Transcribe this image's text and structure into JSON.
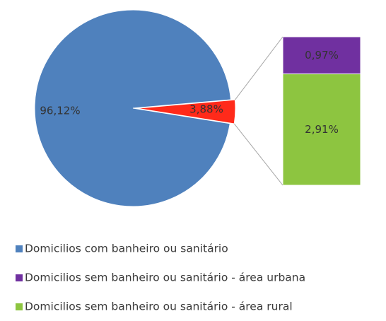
{
  "chart_data": {
    "type": "pie-of-bar",
    "categories": [
      "Domicilios com banheiro ou sanitário",
      null
    ],
    "values": [
      96.12,
      3.88
    ],
    "value_labels": [
      "96,12%",
      "3,88%"
    ],
    "colors": [
      "#4f81bd",
      "#ff2a1a"
    ],
    "bar_series": [
      {
        "name": "Domicilios sem banheiro ou sanitário - área urbana",
        "color": "#7030a0",
        "values": [
          0.97
        ],
        "value_labels": [
          "0,97%"
        ]
      },
      {
        "name": "Domicilios sem banheiro ou sanitário - área rural",
        "color": "#8dc540",
        "values": [
          2.91
        ],
        "value_labels": [
          "2,91%"
        ]
      }
    ]
  }
}
